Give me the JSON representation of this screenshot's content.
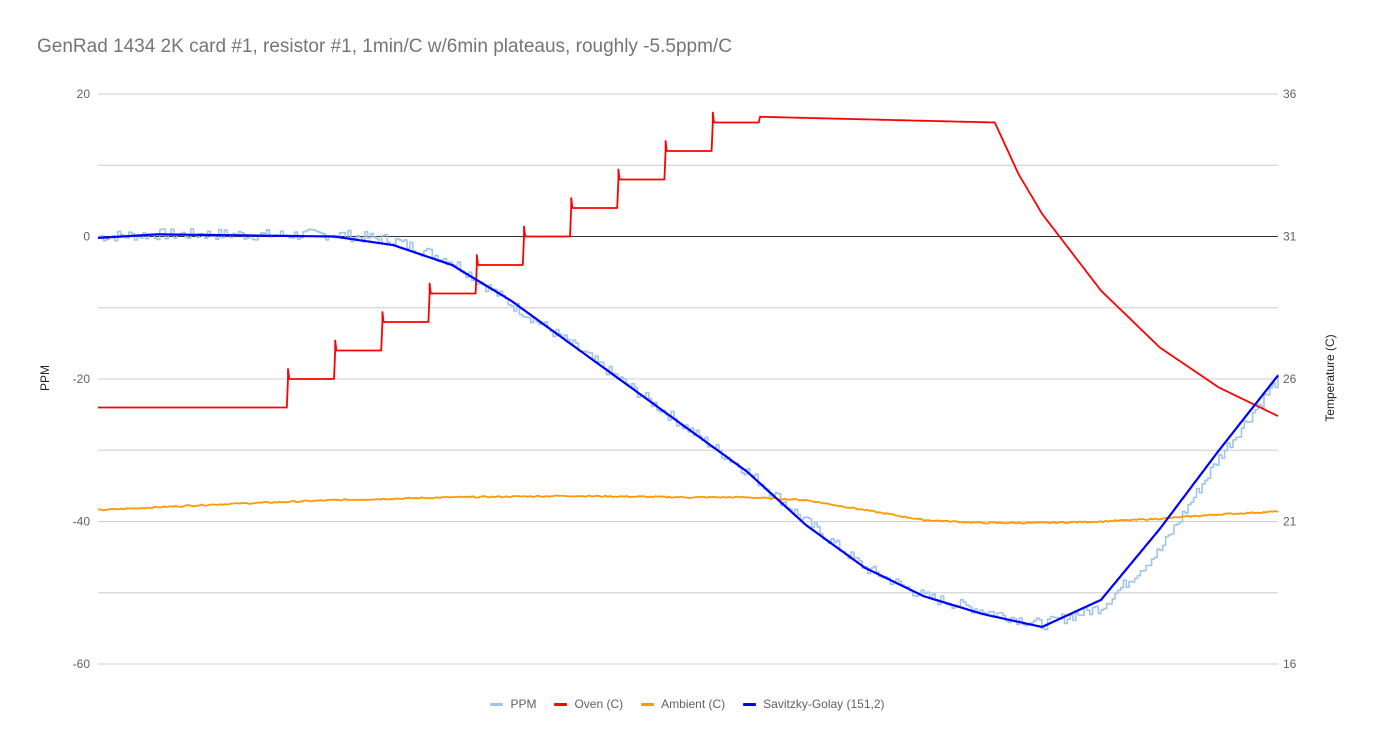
{
  "chart_data": {
    "type": "line",
    "title": "GenRad 1434 2K card #1, resistor #1, 1min/C w/6min plateaus, roughly -5.5ppm/C",
    "ylabel_left": "PPM",
    "ylabel_right": "Temperature (C)",
    "xlabel": "",
    "y_left_ticks": [
      "20",
      "0",
      "-20",
      "-40",
      "-60"
    ],
    "y_right_ticks": [
      "36",
      "31",
      "26",
      "21",
      "16"
    ],
    "ylim_left": [
      -60,
      20
    ],
    "ylim_right": [
      16,
      36
    ],
    "xlim": [
      0,
      1000
    ],
    "grid": true,
    "legend_position": "bottom",
    "series": [
      {
        "name": "PPM",
        "axis": "left",
        "color": "#9fc5e8",
        "x": [
          0,
          50,
          100,
          150,
          200,
          250,
          300,
          350,
          400,
          450,
          500,
          550,
          600,
          650,
          700,
          750,
          800,
          850,
          900,
          950,
          1000
        ],
        "values": [
          0,
          0.3,
          0.3,
          0.2,
          0.3,
          -0.5,
          -3.5,
          -9.5,
          -15,
          -21,
          -27,
          -33,
          -40,
          -46.5,
          -50.5,
          -52.5,
          -54.5,
          -52,
          -44,
          -31,
          -20
        ]
      },
      {
        "name": "Oven (C)",
        "axis": "right",
        "color": "#ff0000",
        "x": [
          0,
          160,
          161,
          200,
          201,
          240,
          241,
          280,
          281,
          320,
          321,
          360,
          361,
          400,
          401,
          440,
          441,
          480,
          481,
          520,
          521,
          560,
          561,
          760,
          780,
          800,
          850,
          900,
          950,
          1000
        ],
        "values": [
          25,
          25,
          26,
          26,
          27,
          27,
          28,
          28,
          29,
          29,
          30,
          30,
          31,
          31,
          32,
          32,
          33,
          33,
          34,
          34,
          35,
          35,
          35.2,
          35,
          33.2,
          31.8,
          29.1,
          27.1,
          25.7,
          24.7
        ]
      },
      {
        "name": "Ambient (C)",
        "axis": "right",
        "color": "#ff9900",
        "x": [
          0,
          100,
          200,
          300,
          400,
          500,
          550,
          600,
          650,
          700,
          750,
          800,
          850,
          900,
          950,
          1000
        ],
        "values": [
          21.4,
          21.6,
          21.75,
          21.85,
          21.9,
          21.85,
          21.85,
          21.75,
          21.4,
          21.05,
          20.95,
          20.95,
          21.0,
          21.1,
          21.25,
          21.35
        ]
      },
      {
        "name": "Savitzky-Golay (151,2)",
        "axis": "left",
        "color": "#0000ff",
        "x": [
          0,
          50,
          100,
          150,
          200,
          250,
          300,
          350,
          400,
          450,
          500,
          550,
          600,
          650,
          700,
          750,
          800,
          850,
          900,
          950,
          1000
        ],
        "values": [
          -0.2,
          0.3,
          0.2,
          0.1,
          0,
          -1.2,
          -4,
          -9,
          -15,
          -21,
          -27,
          -33,
          -40.5,
          -46.5,
          -50.5,
          -53,
          -54.8,
          -51,
          -41,
          -30,
          -19.5
        ]
      }
    ]
  }
}
